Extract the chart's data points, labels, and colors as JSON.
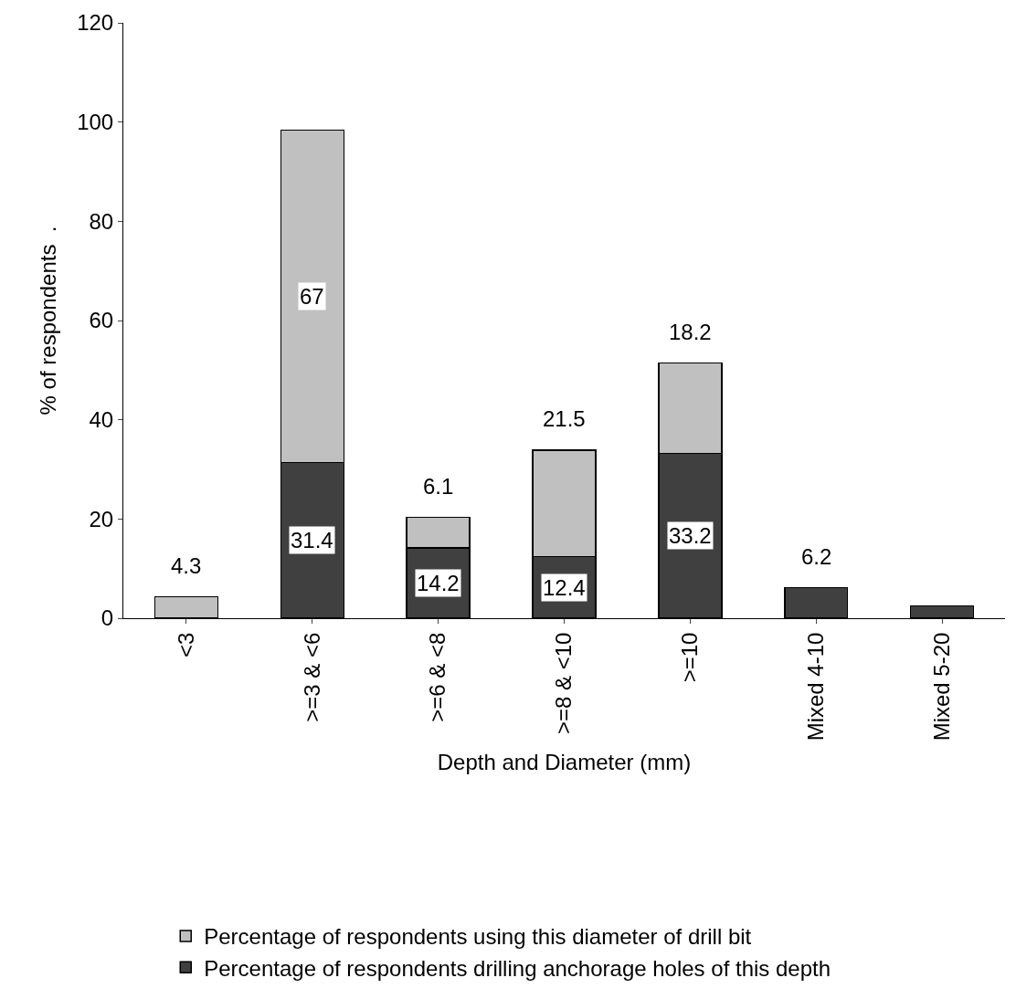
{
  "chart_data": {
    "type": "bar",
    "stacked": true,
    "xlabel": "Depth and Diameter (mm)",
    "ylabel": "% of respondents  .",
    "categories": [
      "<3",
      ">=3 & <6",
      ">=6 & <8",
      ">=8 & <10",
      ">=10",
      "Mixed 4-10",
      "Mixed 5-20"
    ],
    "series": [
      {
        "name": "Percentage of respondents drilling anchorage holes of this depth",
        "color": "#404040",
        "values": [
          null,
          31.4,
          14.2,
          12.4,
          33.2,
          6.2,
          2.5
        ],
        "value_labels": [
          null,
          "31.4",
          "14.2",
          "12.4",
          "33.2",
          "6.2",
          null
        ]
      },
      {
        "name": "Percentage of respondents using this diameter of drill bit",
        "color": "#c0c0c0",
        "values": [
          4.3,
          67,
          6.1,
          21.5,
          18.2,
          null,
          null
        ],
        "value_labels": [
          "4.3",
          "67",
          "6.1",
          "21.5",
          "18.2",
          null,
          null
        ]
      }
    ],
    "ylim": [
      0,
      120
    ],
    "yticks": [
      0,
      20,
      40,
      60,
      80,
      100,
      120
    ],
    "grid": false,
    "legend": "bottom"
  }
}
